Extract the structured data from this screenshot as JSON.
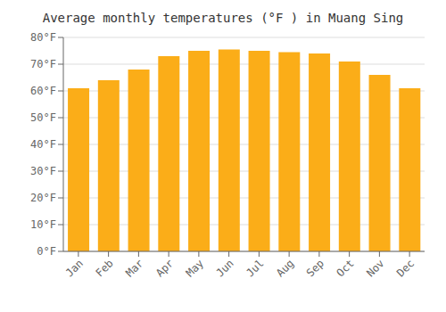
{
  "chart_data": {
    "type": "bar",
    "title": "Average monthly temperatures (°F ) in Muang Sing",
    "categories": [
      "Jan",
      "Feb",
      "Mar",
      "Apr",
      "May",
      "Jun",
      "Jul",
      "Aug",
      "Sep",
      "Oct",
      "Nov",
      "Dec"
    ],
    "values": [
      61,
      64,
      68,
      73,
      75,
      75.5,
      75,
      74.5,
      74,
      71,
      66,
      61
    ],
    "color": "#FBAD18",
    "ylim": [
      0,
      80
    ],
    "yticks": [
      {
        "value": 0,
        "label": "0°F"
      },
      {
        "value": 10,
        "label": "10°F"
      },
      {
        "value": 20,
        "label": "20°F"
      },
      {
        "value": 30,
        "label": "30°F"
      },
      {
        "value": 40,
        "label": "40°F"
      },
      {
        "value": 50,
        "label": "50°F"
      },
      {
        "value": 60,
        "label": "60°F"
      },
      {
        "value": 70,
        "label": "70°F"
      },
      {
        "value": 80,
        "label": "80°F"
      }
    ],
    "grid": true
  }
}
